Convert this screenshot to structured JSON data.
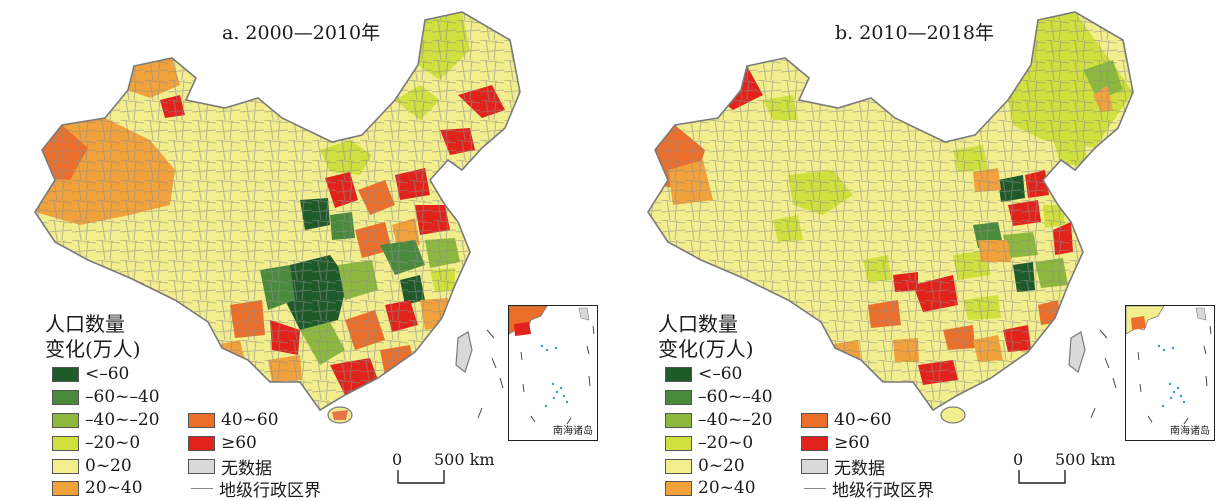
{
  "panels": [
    {
      "title": "a. 2000—2010年"
    },
    {
      "title": "b. 2010—2018年"
    }
  ],
  "legend": {
    "title_line1": "人口数量",
    "title_line2": "变化(万人)",
    "classes": [
      {
        "label": "<–60",
        "color": "#1f5a2b"
      },
      {
        "label": "–60~–40",
        "color": "#4a8a3c"
      },
      {
        "label": "–40~–20",
        "color": "#8db83e"
      },
      {
        "label": "–20~0",
        "color": "#cfe03f"
      },
      {
        "label": "0~20",
        "color": "#f2ee8e"
      },
      {
        "label": "20~40",
        "color": "#f2a23a"
      },
      {
        "label": "40~60",
        "color": "#ec6e2b"
      },
      {
        "label": "≥60",
        "color": "#e2231b"
      },
      {
        "label": "无数据",
        "color": "#d9d9d9"
      }
    ],
    "boundary_label": "地级行政区界"
  },
  "inset_label": "南海诸岛",
  "scale": {
    "zero": "0",
    "distance": "500 km"
  }
}
